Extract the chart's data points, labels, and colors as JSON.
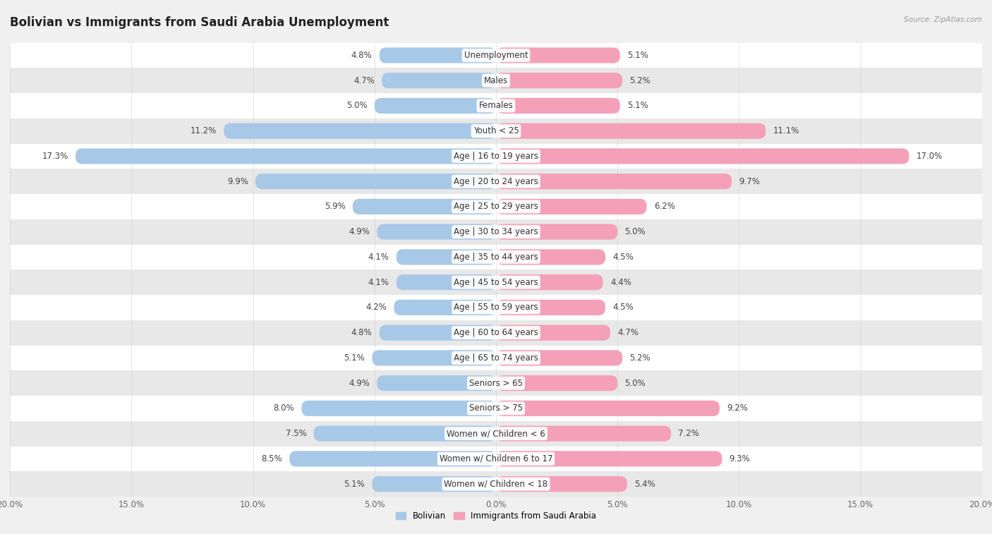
{
  "title": "Bolivian vs Immigrants from Saudi Arabia Unemployment",
  "source": "Source: ZipAtlas.com",
  "categories": [
    "Unemployment",
    "Males",
    "Females",
    "Youth < 25",
    "Age | 16 to 19 years",
    "Age | 20 to 24 years",
    "Age | 25 to 29 years",
    "Age | 30 to 34 years",
    "Age | 35 to 44 years",
    "Age | 45 to 54 years",
    "Age | 55 to 59 years",
    "Age | 60 to 64 years",
    "Age | 65 to 74 years",
    "Seniors > 65",
    "Seniors > 75",
    "Women w/ Children < 6",
    "Women w/ Children 6 to 17",
    "Women w/ Children < 18"
  ],
  "bolivian": [
    4.8,
    4.7,
    5.0,
    11.2,
    17.3,
    9.9,
    5.9,
    4.9,
    4.1,
    4.1,
    4.2,
    4.8,
    5.1,
    4.9,
    8.0,
    7.5,
    8.5,
    5.1
  ],
  "saudi": [
    5.1,
    5.2,
    5.1,
    11.1,
    17.0,
    9.7,
    6.2,
    5.0,
    4.5,
    4.4,
    4.5,
    4.7,
    5.2,
    5.0,
    9.2,
    7.2,
    9.3,
    5.4
  ],
  "bolivian_color": "#a8c8e8",
  "saudi_color": "#f4a0b8",
  "bar_height": 0.62,
  "xlim": 20.0,
  "background_color": "#f0f0f0",
  "row_color_odd": "#ffffff",
  "row_color_even": "#e8e8e8",
  "legend_bolivian": "Bolivian",
  "legend_saudi": "Immigrants from Saudi Arabia",
  "title_fontsize": 12,
  "label_fontsize": 8.5,
  "tick_fontsize": 8.5,
  "value_fontsize": 8.5
}
